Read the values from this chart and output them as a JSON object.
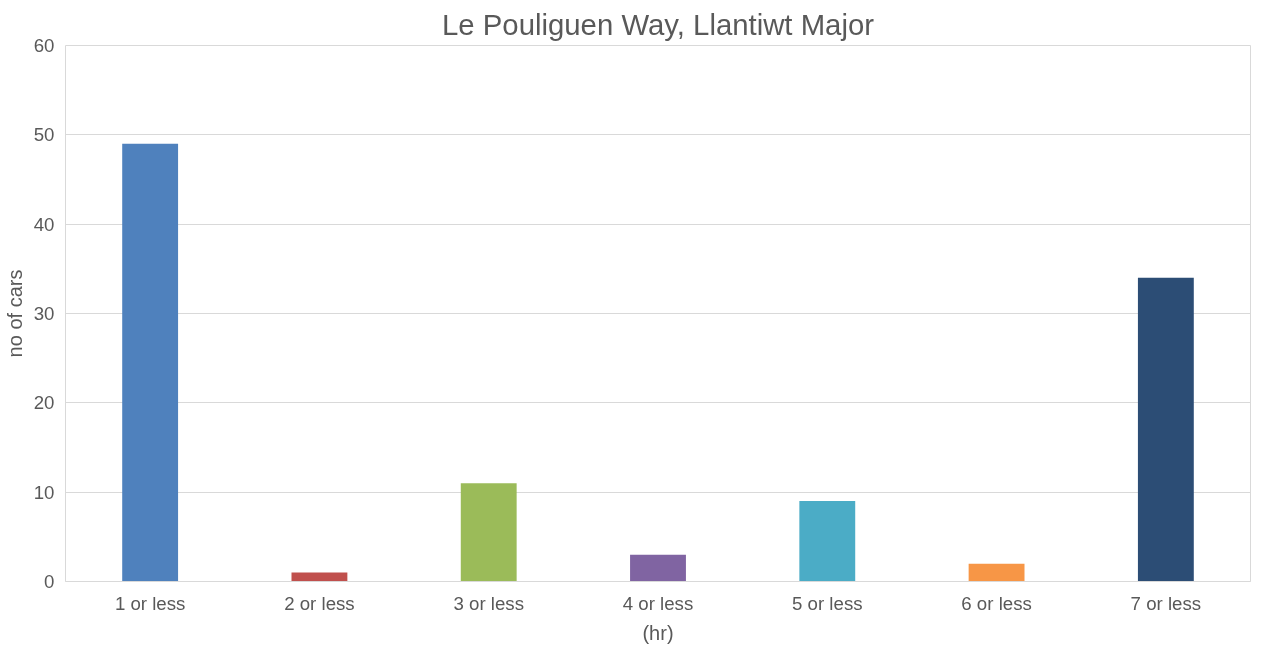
{
  "chart_data": {
    "type": "bar",
    "title": "Le Pouliguen Way, Llantiwt Major",
    "xlabel": "(hr)",
    "ylabel": "no of cars",
    "categories": [
      "1 or less",
      "2 or less",
      "3 or less",
      "4 or less",
      "5 or less",
      "6 or less",
      "7 or less"
    ],
    "values": [
      49,
      1,
      11,
      3,
      9,
      2,
      34
    ],
    "colors": [
      "#4f81bd",
      "#c0504d",
      "#9bbb59",
      "#8064a2",
      "#4bacc6",
      "#f79646",
      "#2c4d75"
    ],
    "ylim": [
      0,
      60
    ],
    "yticks": [
      0,
      10,
      20,
      30,
      40,
      50,
      60
    ],
    "grid": "y"
  }
}
